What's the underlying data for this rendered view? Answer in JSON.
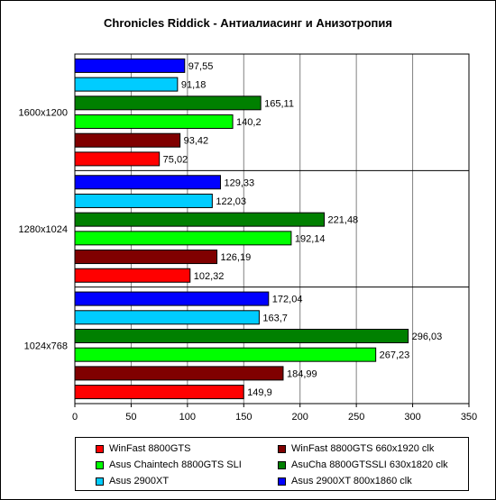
{
  "chart_data": {
    "type": "bar",
    "orientation": "horizontal",
    "title": "Chronicles Riddick - Антиалиасинг и Анизотропия",
    "categories": [
      "1600x1200",
      "1280x1024",
      "1024x768"
    ],
    "xlim": [
      0,
      350
    ],
    "xticks": [
      "0",
      "50",
      "100",
      "150",
      "200",
      "250",
      "300",
      "350"
    ],
    "grid": true,
    "legend_position": "bottom",
    "series": [
      {
        "name": "WinFast 8800GTS",
        "color": "#ff0000",
        "values": [
          75.02,
          102.32,
          149.9
        ],
        "labels": [
          "75,02",
          "102,32",
          "149,9"
        ]
      },
      {
        "name": "WinFast 8800GTS 660x1920 clk",
        "color": "#800000",
        "values": [
          93.42,
          126.19,
          184.99
        ],
        "labels": [
          "93,42",
          "126,19",
          "184,99"
        ]
      },
      {
        "name": "Asus Chaintech 8800GTS SLI",
        "color": "#00ff00",
        "values": [
          140.2,
          192.14,
          267.23
        ],
        "labels": [
          "140,2",
          "192,14",
          "267,23"
        ]
      },
      {
        "name": "AsuCha 8800GTSSLI 630x1820 clk",
        "color": "#008000",
        "values": [
          165.11,
          221.48,
          296.03
        ],
        "labels": [
          "165,11",
          "221,48",
          "296,03"
        ]
      },
      {
        "name": "Asus 2900XT",
        "color": "#00ccff",
        "values": [
          91.18,
          122.03,
          163.7
        ],
        "labels": [
          "91,18",
          "122,03",
          "163,7"
        ]
      },
      {
        "name": "Asus 2900XT 800x1860 clk",
        "color": "#0000ff",
        "values": [
          97.55,
          129.33,
          172.04
        ],
        "labels": [
          "97,55",
          "129,33",
          "172,04"
        ]
      }
    ]
  }
}
